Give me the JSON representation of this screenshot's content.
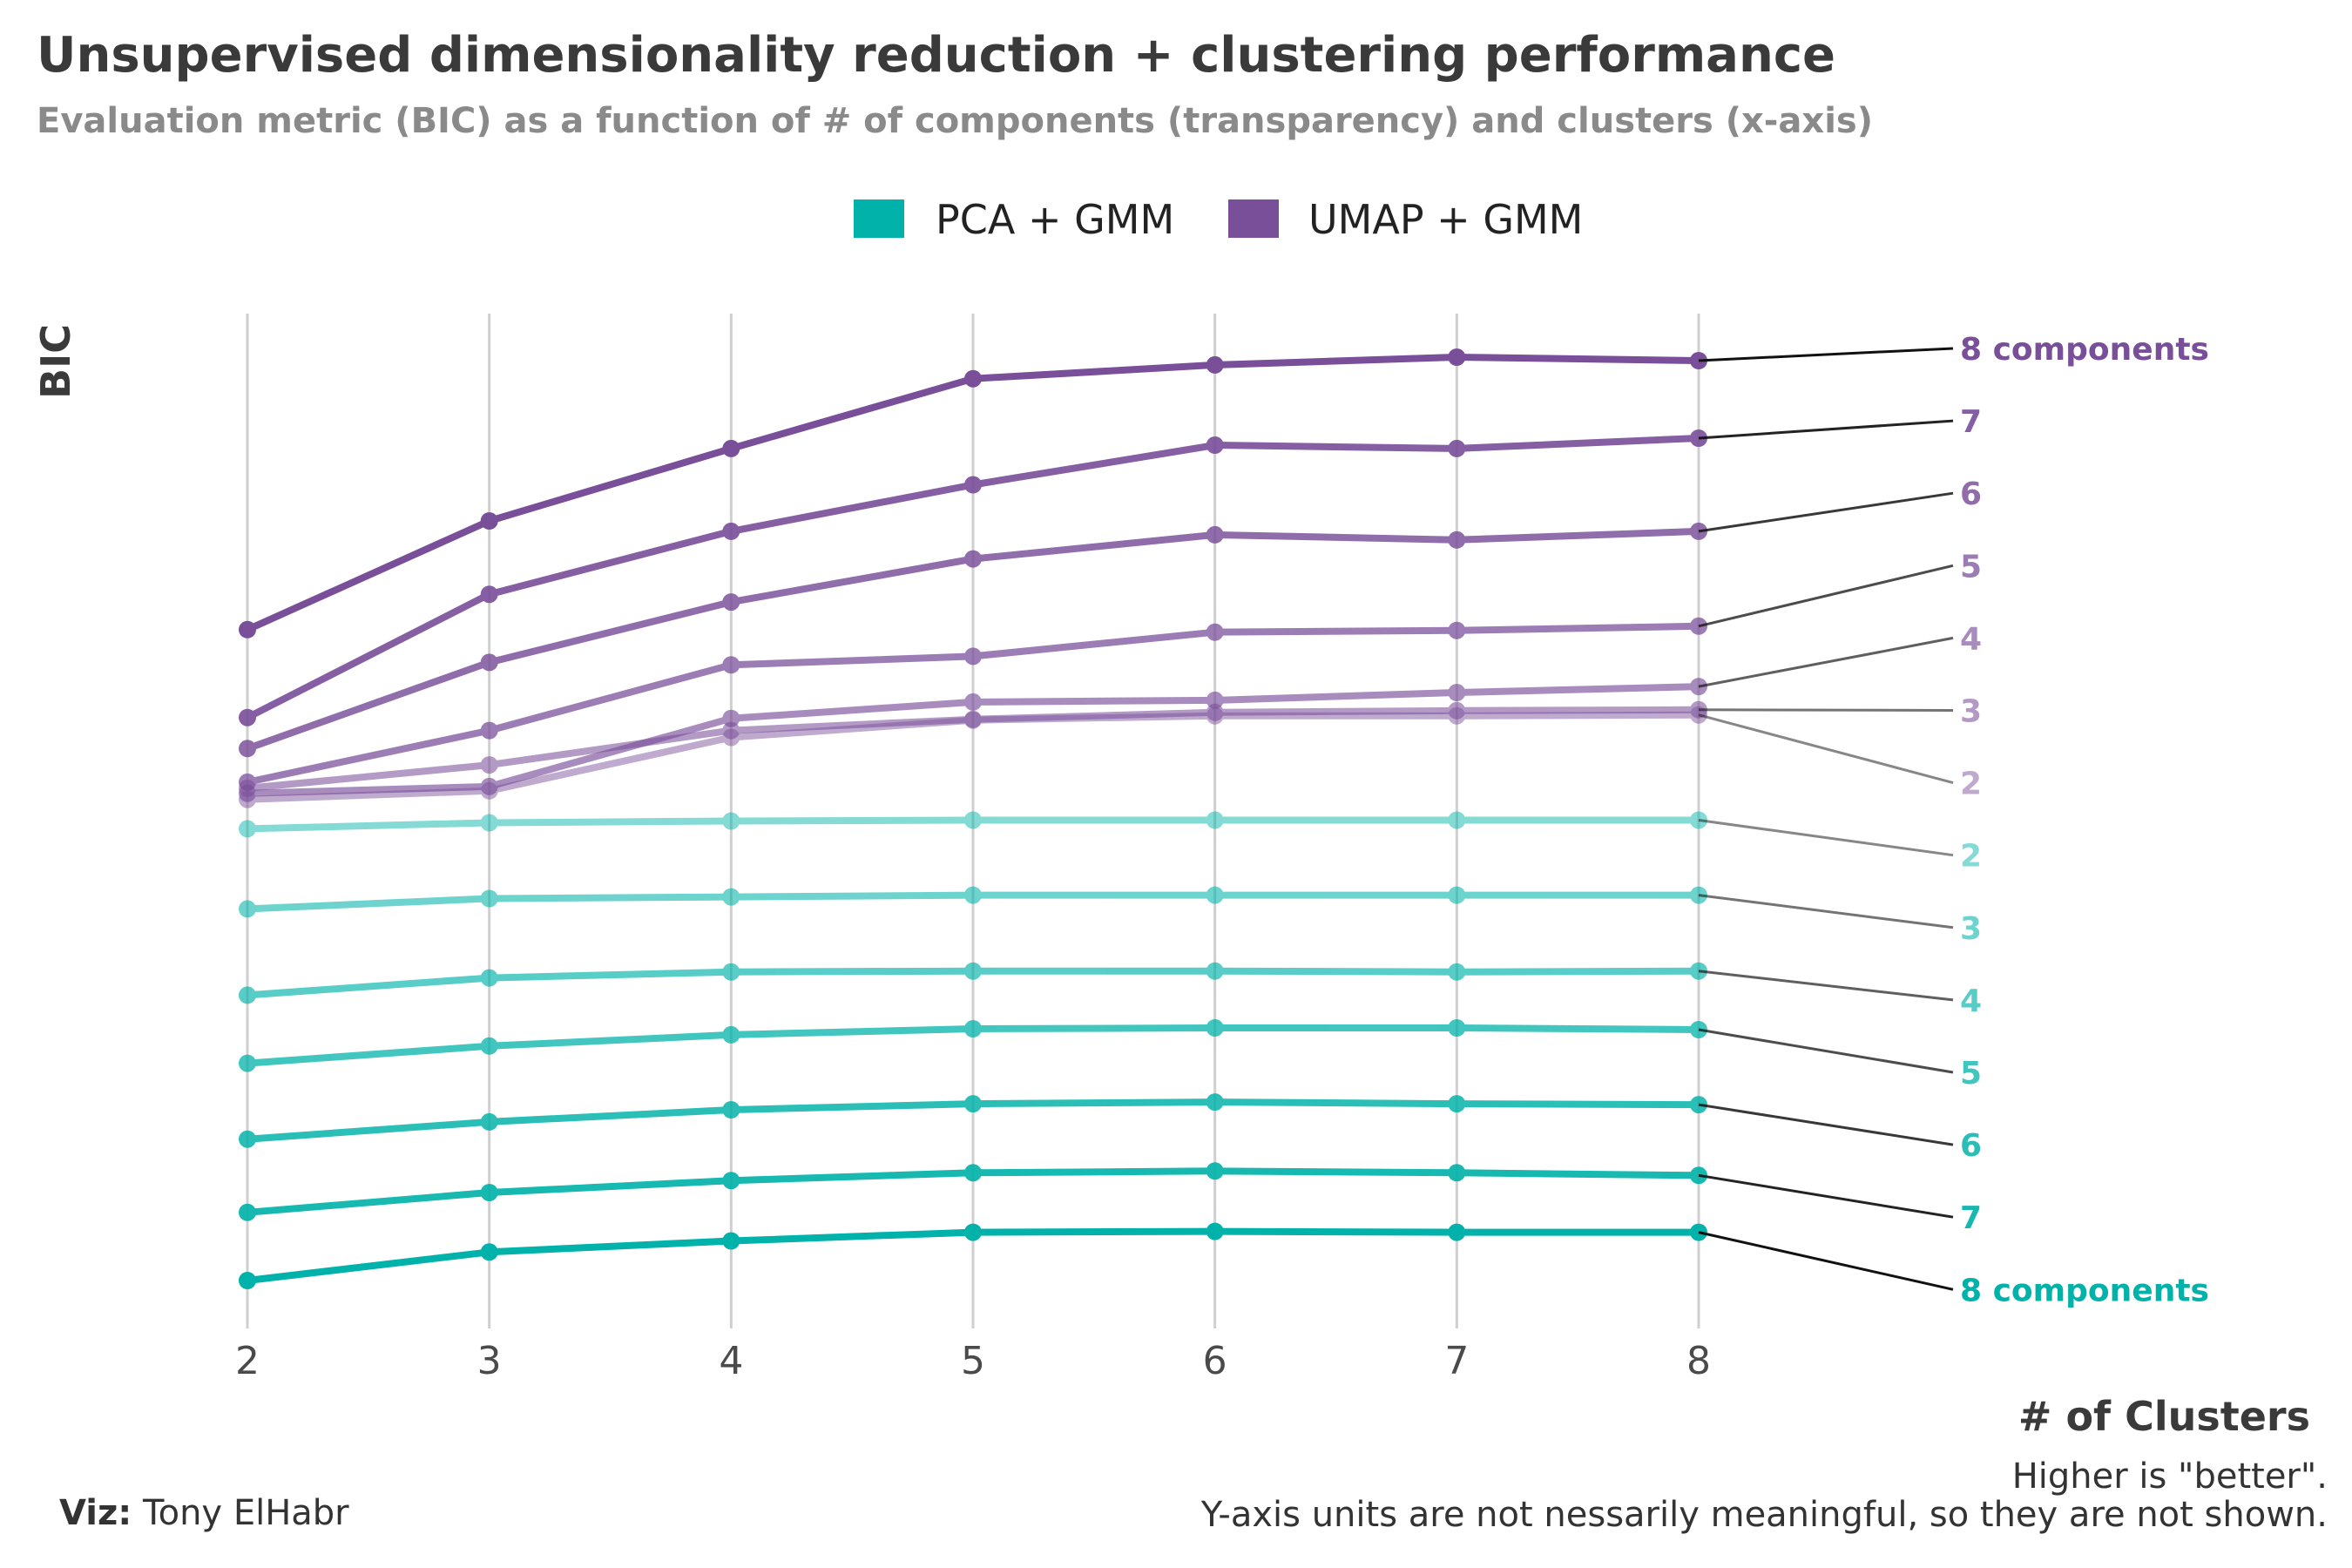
{
  "title": "Unsupervised dimensionality reduction + clustering performance",
  "subtitle": "Evaluation metric (BIC) as a function of # of components (transparency) and clusters (x-axis)",
  "caption": {
    "viz_prefix": "Viz:",
    "viz_author": "Tony ElHabr",
    "note_line1": "Higher is \"better\".",
    "note_line2": "Y-axis units are not nessarily meaningful, so they are not shown."
  },
  "colors": {
    "pca": "#00b2a9",
    "umap": "#7a4f9a",
    "grid": "#cfcfcf"
  },
  "chart_data": {
    "type": "line",
    "title": "Unsupervised dimensionality reduction + clustering performance",
    "subtitle": "Evaluation metric (BIC) as a function of # of components (transparency) and clusters (x-axis)",
    "xlabel": "# of Clusters",
    "ylabel": "BIC",
    "x": [
      2,
      3,
      4,
      5,
      6,
      7,
      8
    ],
    "x_ticks": [
      "2",
      "3",
      "4",
      "5",
      "6",
      "7",
      "8"
    ],
    "y_axis_shown": false,
    "grid": "vertical only",
    "legend_position": "top",
    "legend": [
      {
        "label": "PCA + GMM",
        "color": "#00b2a9"
      },
      {
        "label": "UMAP + GMM",
        "color": "#7a4f9a"
      }
    ],
    "series": [
      {
        "method": "UMAP + GMM",
        "components": 8,
        "end_label": "8  components",
        "values": [
          78.5,
          91.1,
          99.5,
          107.6,
          109.2,
          110.1,
          109.7
        ]
      },
      {
        "method": "UMAP + GMM",
        "components": 7,
        "end_label": "7",
        "values": [
          68.3,
          82.6,
          89.9,
          95.3,
          99.9,
          99.5,
          100.7
        ]
      },
      {
        "method": "UMAP + GMM",
        "components": 6,
        "end_label": "6",
        "values": [
          64.7,
          74.7,
          81.7,
          86.7,
          89.5,
          88.9,
          89.9
        ]
      },
      {
        "method": "UMAP + GMM",
        "components": 5,
        "end_label": "5",
        "values": [
          60.8,
          66.8,
          74.4,
          75.4,
          78.2,
          78.4,
          78.9
        ]
      },
      {
        "method": "UMAP + GMM",
        "components": 4,
        "end_label": "4",
        "values": [
          59.5,
          60.3,
          68.2,
          70.1,
          70.3,
          71.2,
          71.9
        ]
      },
      {
        "method": "UMAP + GMM",
        "components": 3,
        "end_label": "3",
        "values": [
          60.1,
          62.8,
          66.8,
          68.1,
          68.9,
          69.1,
          69.2
        ]
      },
      {
        "method": "UMAP + GMM",
        "components": 2,
        "end_label": "2",
        "values": [
          58.8,
          59.8,
          66.0,
          68.0,
          68.5,
          68.5,
          68.6
        ]
      },
      {
        "method": "PCA + GMM",
        "components": 2,
        "end_label": "2",
        "values": [
          55.4,
          56.1,
          56.3,
          56.4,
          56.4,
          56.4,
          56.4
        ]
      },
      {
        "method": "PCA + GMM",
        "components": 3,
        "end_label": "3",
        "values": [
          46.1,
          47.3,
          47.5,
          47.7,
          47.7,
          47.7,
          47.7
        ]
      },
      {
        "method": "PCA + GMM",
        "components": 4,
        "end_label": "4",
        "values": [
          36.1,
          38.1,
          38.8,
          38.9,
          38.9,
          38.8,
          38.9
        ]
      },
      {
        "method": "PCA + GMM",
        "components": 5,
        "end_label": "5",
        "values": [
          28.2,
          30.2,
          31.5,
          32.2,
          32.3,
          32.3,
          32.1
        ]
      },
      {
        "method": "PCA + GMM",
        "components": 6,
        "end_label": "6",
        "values": [
          19.4,
          21.4,
          22.8,
          23.5,
          23.7,
          23.5,
          23.4
        ]
      },
      {
        "method": "PCA + GMM",
        "components": 7,
        "end_label": "7",
        "values": [
          10.9,
          13.2,
          14.6,
          15.5,
          15.7,
          15.5,
          15.2
        ]
      },
      {
        "method": "PCA + GMM",
        "components": 8,
        "end_label": "8  components",
        "values": [
          3.0,
          6.3,
          7.6,
          8.6,
          8.7,
          8.6,
          8.6
        ]
      }
    ]
  }
}
